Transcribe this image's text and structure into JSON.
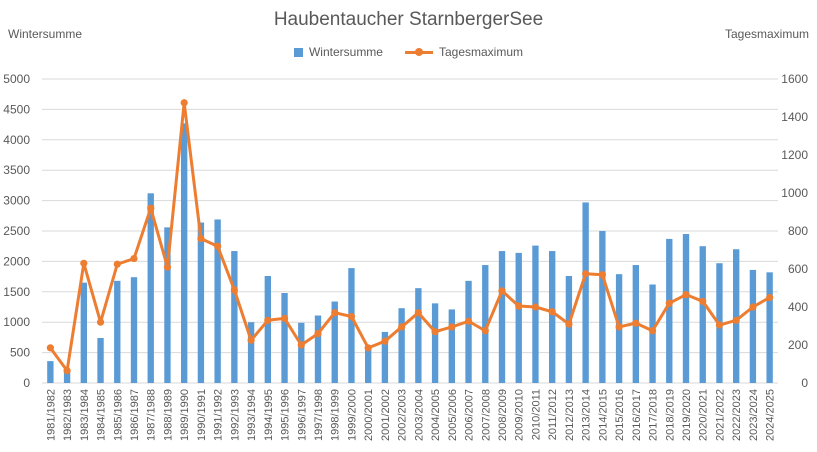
{
  "chart_data": {
    "type": "bar",
    "title": "Haubentaucher StarnbergerSee",
    "ylabel": "Wintersumme",
    "y2label": "Tagesmaximum",
    "ylim": [
      0,
      5000
    ],
    "y2lim": [
      0,
      1600
    ],
    "yticks": [
      "0",
      "500",
      "1000",
      "1500",
      "2000",
      "2500",
      "3000",
      "3500",
      "4000",
      "4500",
      "5000"
    ],
    "y2ticks": [
      "0",
      "200",
      "400",
      "600",
      "800",
      "1000",
      "1200",
      "1400",
      "1600"
    ],
    "legend_position": "top",
    "grid": true,
    "colors": {
      "bar": "#5b9bd5",
      "line": "#ed7d31",
      "grid": "#d9d9d9",
      "text": "#595959"
    },
    "categories": [
      "1981/1982",
      "1982/1983",
      "1983/1984",
      "1984/1985",
      "1985/1986",
      "1986/1987",
      "1987/1988",
      "1988/1989",
      "1989/1990",
      "1990/1991",
      "1991/1992",
      "1992/1993",
      "1993/1994",
      "1994/1995",
      "1995/1996",
      "1996/1997",
      "1997/1998",
      "1998/1999",
      "1999/2000",
      "2000/2001",
      "2001/2002",
      "2002/2003",
      "2003/2004",
      "2004/2005",
      "2005/2006",
      "2006/2007",
      "2007/2008",
      "2008/2009",
      "2009/2010",
      "2010/2011",
      "2011/2012",
      "2012/2013",
      "2013/2014",
      "2014/2015",
      "2015/2016",
      "2016/2017",
      "2017/2018",
      "2018/2019",
      "2019/2020",
      "2020/2021",
      "2021/2022",
      "2022/2023",
      "2023/2024",
      "2024/2025"
    ],
    "series": [
      {
        "name": "Wintersumme",
        "type": "bar",
        "axis": "left",
        "values": [
          360,
          200,
          1650,
          740,
          1680,
          1740,
          3120,
          2560,
          4270,
          2640,
          2690,
          2170,
          1000,
          1760,
          1480,
          990,
          1110,
          1340,
          1890,
          600,
          840,
          1230,
          1560,
          1310,
          1210,
          1680,
          1940,
          2170,
          2140,
          2260,
          2170,
          1760,
          2970,
          2500,
          1790,
          1940,
          1620,
          2370,
          2450,
          2250,
          1970,
          2200,
          1860,
          1820
        ]
      },
      {
        "name": "Tagesmaximum",
        "type": "line",
        "axis": "right",
        "values": [
          185,
          65,
          630,
          320,
          625,
          655,
          920,
          610,
          1475,
          760,
          720,
          490,
          225,
          330,
          340,
          200,
          260,
          370,
          350,
          185,
          220,
          295,
          370,
          270,
          295,
          325,
          275,
          485,
          405,
          400,
          375,
          310,
          575,
          570,
          295,
          315,
          275,
          420,
          465,
          430,
          305,
          330,
          400,
          450
        ]
      }
    ]
  }
}
